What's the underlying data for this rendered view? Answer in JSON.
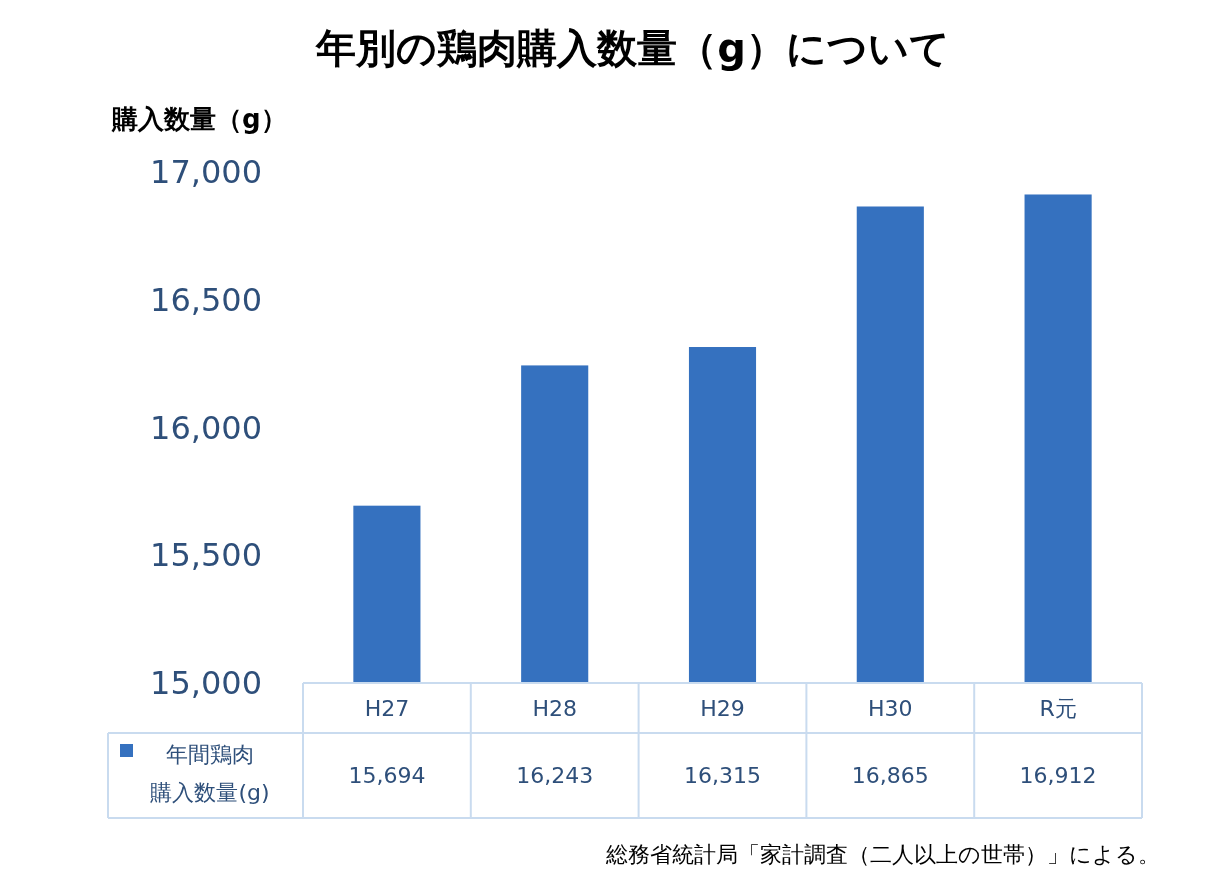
{
  "chart_data": {
    "type": "bar",
    "title": "年別の鶏肉購入数量（g）について",
    "ylabel": "購入数量（g）",
    "categories": [
      "H27",
      "H28",
      "H29",
      "H30",
      "R元"
    ],
    "series": [
      {
        "name": "年間鶏肉購入数量(g)",
        "color": "#3571bf",
        "values": [
          15694,
          16243,
          16315,
          16865,
          16912
        ],
        "value_labels": [
          "15,694",
          "16,243",
          "16,315",
          "16,865",
          "16,912"
        ]
      }
    ],
    "ylim": [
      15000,
      17000
    ],
    "yticks": [
      {
        "value": 15000,
        "label": "15,000"
      },
      {
        "value": 15500,
        "label": "15,500"
      },
      {
        "value": 16000,
        "label": "16,000"
      },
      {
        "value": 16500,
        "label": "16,500"
      },
      {
        "value": 17000,
        "label": "17,000"
      }
    ],
    "legend": "bottom left",
    "grid": false,
    "annotations": [
      "総務省統計局「家計調査（二人以上の世帯）」による。"
    ]
  }
}
